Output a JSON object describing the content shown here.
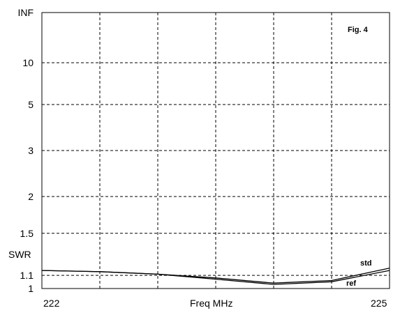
{
  "chart_data": {
    "type": "line",
    "figure_label": "Fig. 4",
    "xlabel": "Freq MHz",
    "ylabel": "SWR",
    "x_ticks": [
      "222",
      "225"
    ],
    "xlim": [
      222,
      225
    ],
    "y_scale": "swr (reflection-coefficient scale)",
    "y_ticks": [
      {
        "value": 1,
        "label": "1"
      },
      {
        "value": 1.1,
        "label": "1.1"
      },
      {
        "value": 1.5,
        "label": "1.5"
      },
      {
        "value": 2,
        "label": "2"
      },
      {
        "value": 3,
        "label": "3"
      },
      {
        "value": 5,
        "label": "5"
      },
      {
        "value": 10,
        "label": "10"
      },
      {
        "value": "INF",
        "label": "INF"
      }
    ],
    "x_grid": [
      222,
      222.5,
      223,
      223.5,
      224,
      224.5,
      225
    ],
    "grid": true,
    "series": [
      {
        "name": "std",
        "x": [
          222,
          222.5,
          223,
          223.5,
          224,
          224.5,
          225
        ],
        "y": [
          1.14,
          1.13,
          1.11,
          1.08,
          1.04,
          1.06,
          1.16
        ]
      },
      {
        "name": "ref",
        "x": [
          222,
          222.5,
          223,
          223.5,
          224,
          224.5,
          225
        ],
        "y": [
          1.14,
          1.13,
          1.11,
          1.07,
          1.03,
          1.05,
          1.14
        ]
      }
    ]
  }
}
